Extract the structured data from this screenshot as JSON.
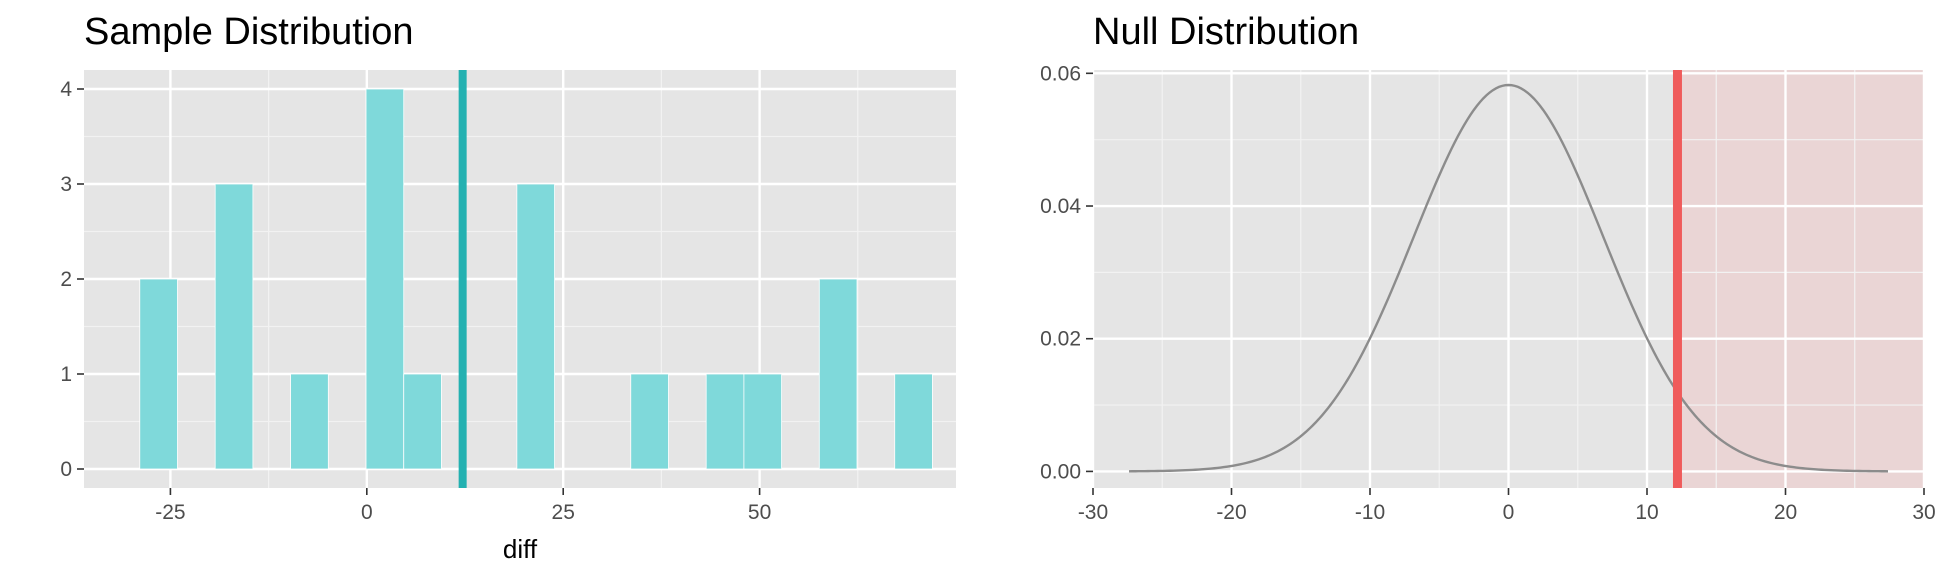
{
  "chart_data": [
    {
      "type": "bar",
      "title": "Sample Distribution",
      "xlabel": "diff",
      "ylabel": "",
      "xlim": [
        -36,
        75
      ],
      "ylim": [
        -0.2,
        4.2
      ],
      "x_ticks": [
        -25,
        0,
        25,
        50
      ],
      "x_tick_labels": [
        "-25",
        "0",
        "25",
        "50"
      ],
      "y_ticks": [
        0,
        1,
        2,
        3,
        4
      ],
      "y_tick_labels": [
        "0",
        "1",
        "2",
        "3",
        "4"
      ],
      "bin_width": 4.8,
      "bins": [
        {
          "x": -26.5,
          "count": 2
        },
        {
          "x": -16.9,
          "count": 3
        },
        {
          "x": -7.3,
          "count": 1
        },
        {
          "x": 2.3,
          "count": 4
        },
        {
          "x": 7.1,
          "count": 1
        },
        {
          "x": 21.5,
          "count": 3
        },
        {
          "x": 36.0,
          "count": 1
        },
        {
          "x": 45.6,
          "count": 1
        },
        {
          "x": 50.4,
          "count": 1
        },
        {
          "x": 60.0,
          "count": 2
        },
        {
          "x": 69.6,
          "count": 1
        }
      ],
      "reference_line": 12.2,
      "colors": {
        "bars": "#7fd9da",
        "line": "#23b1b1",
        "panel": "#e5e5e5"
      },
      "grid": true
    },
    {
      "type": "area",
      "title": "Null Distribution",
      "xlabel": "",
      "ylabel": "",
      "xlim": [
        -30,
        30
      ],
      "ylim": [
        -0.0025,
        0.0605
      ],
      "x_ticks": [
        -30,
        -20,
        -10,
        0,
        10,
        20,
        30
      ],
      "x_tick_labels": [
        "-30",
        "-20",
        "-10",
        "0",
        "10",
        "20",
        "30"
      ],
      "y_ticks": [
        0,
        0.02,
        0.04,
        0.06
      ],
      "y_tick_labels": [
        "0.00",
        "0.02",
        "0.04",
        "0.06"
      ],
      "curve": {
        "distribution": "normal",
        "mean": 0,
        "sd": 6.85,
        "x_range": [
          -27.4,
          27.4
        ]
      },
      "observed_stat": 12.2,
      "shade_direction": "right",
      "colors": {
        "curve": "#8c8c8c",
        "line": "#ef5b5b",
        "shade": "#f4b8b8",
        "panel": "#e5e5e5"
      },
      "grid": true
    }
  ]
}
